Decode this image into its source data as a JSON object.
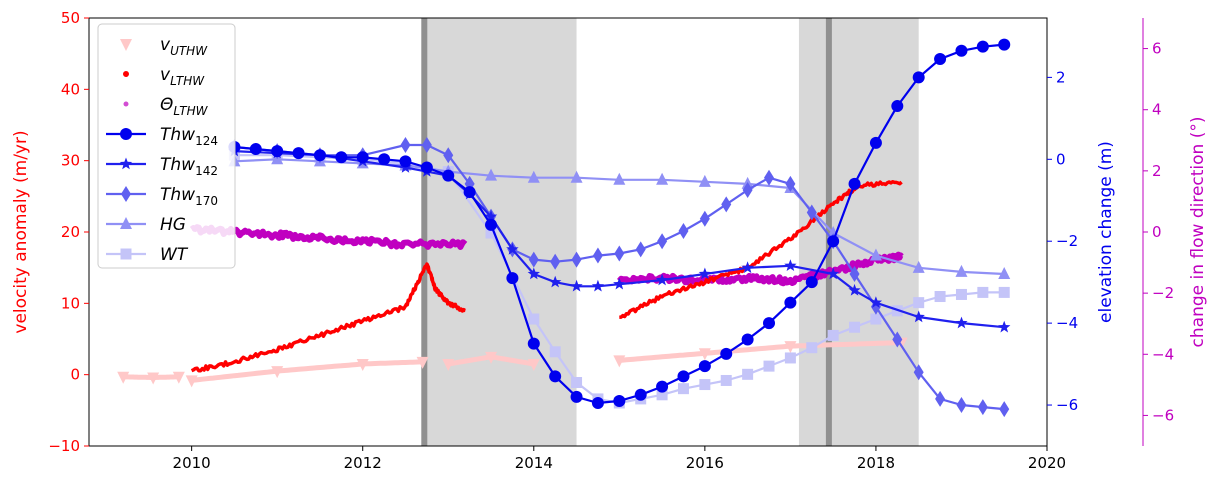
{
  "chart_data": {
    "type": "line",
    "title": "",
    "xlabel": "",
    "ylabel": "velocity anomaly (m/yr)",
    "ylabel_right": "elevation change (m)",
    "ylabel_far_right": "change in flow direction (°)",
    "xlim": [
      2008.8,
      2020
    ],
    "ylim": [
      -10,
      50
    ],
    "ylim_right": [
      -7,
      3.45
    ],
    "ylim_far_right": [
      -7,
      7
    ],
    "x_ticks": [
      2010,
      2012,
      2014,
      2016,
      2018,
      2020
    ],
    "y_ticks": [
      -10,
      0,
      10,
      20,
      30,
      40,
      50
    ],
    "y_ticks_right": [
      -6,
      -4,
      -2,
      0,
      2
    ],
    "y_ticks_far_right": [
      -6,
      -4,
      -2,
      0,
      2,
      4,
      6
    ],
    "grid": false,
    "legend_position": "upper-left",
    "colors": {
      "velocity_axis": "#ff0000",
      "elevation_axis": "#0000ee",
      "direction_axis": "#c000c0",
      "shade": "#d8d8d8",
      "shade_line": "#909090"
    },
    "shaded_periods": [
      [
        2012.75,
        2014.5
      ],
      [
        2017.1,
        2018.5
      ]
    ],
    "event_lines": [
      2012.72,
      2017.45
    ],
    "legend": [
      {
        "base": "v",
        "sub": "UTHW",
        "key": "v_uthw"
      },
      {
        "base": "v",
        "sub": "LTHW",
        "key": "v_lthw"
      },
      {
        "base": "Θ",
        "sub": "LTHW",
        "key": "theta_lthw"
      },
      {
        "base": "Thw",
        "sub": "124",
        "key": "thw124"
      },
      {
        "base": "Thw",
        "sub": "142",
        "key": "thw142"
      },
      {
        "base": "Thw",
        "sub": "170",
        "key": "thw170"
      },
      {
        "base": "HG",
        "sub": "",
        "key": "hg"
      },
      {
        "base": "WT",
        "sub": "",
        "key": "wt"
      }
    ],
    "series": [
      {
        "key": "v_uthw",
        "axis": "velocity",
        "color": "#ffc8c8",
        "marker": "triangle-down",
        "segments": [
          {
            "x": [
              2009.2,
              2009.55,
              2009.85
            ],
            "y": [
              -0.3,
              -0.4,
              -0.3
            ]
          },
          {
            "x": [
              2010.0,
              2011.0,
              2012.0,
              2012.7
            ],
            "y": [
              -0.8,
              0.5,
              1.5,
              1.8
            ]
          },
          {
            "x": [
              2013.0,
              2013.5,
              2014.0
            ],
            "y": [
              1.5,
              2.5,
              1.5
            ]
          },
          {
            "x": [
              2015.0,
              2016.0,
              2017.0,
              2018.3
            ],
            "y": [
              2.0,
              3.0,
              4.0,
              4.5
            ]
          }
        ]
      },
      {
        "key": "v_lthw",
        "axis": "velocity",
        "color": "#ff0000",
        "marker": "dot",
        "segments": [
          {
            "x": [
              2010.0,
              2010.5,
              2011.0,
              2011.5,
              2012.0,
              2012.5,
              2012.75,
              2012.85,
              2013.0,
              2013.2
            ],
            "y": [
              0.5,
              1.8,
              3.5,
              5.5,
              7.5,
              9.5,
              15.5,
              12.0,
              10.0,
              9.0
            ]
          },
          {
            "x": [
              2015.0,
              2015.5,
              2016.0,
              2016.5,
              2017.0,
              2017.5,
              2017.8,
              2018.3
            ],
            "y": [
              8.0,
              11.0,
              13.0,
              15.0,
              19.0,
              24.0,
              26.5,
              27.0
            ]
          }
        ]
      },
      {
        "key": "theta_lthw",
        "axis": "direction",
        "color": "#c000c0",
        "marker": "dot-small",
        "segments": [
          {
            "x": [
              2010.0,
              2010.5,
              2011.0,
              2011.5,
              2012.0,
              2012.5,
              2013.2
            ],
            "y": [
              0.1,
              0.0,
              -0.1,
              -0.2,
              -0.3,
              -0.4,
              -0.4
            ]
          },
          {
            "x": [
              2015.0,
              2015.5,
              2016.0,
              2016.5,
              2017.0,
              2017.5,
              2018.0,
              2018.3
            ],
            "y": [
              -1.6,
              -1.5,
              -1.6,
              -1.5,
              -1.6,
              -1.3,
              -0.9,
              -0.8
            ]
          }
        ]
      },
      {
        "key": "thw124",
        "axis": "elevation",
        "color": "#0000ee",
        "marker": "circle",
        "x": [
          2010.5,
          2010.75,
          2011.0,
          2011.25,
          2011.5,
          2011.75,
          2012.0,
          2012.25,
          2012.5,
          2012.75,
          2013.0,
          2013.25,
          2013.5,
          2013.75,
          2014.0,
          2014.25,
          2014.5,
          2014.75,
          2015.0,
          2015.25,
          2015.5,
          2015.75,
          2016.0,
          2016.25,
          2016.5,
          2016.75,
          2017.0,
          2017.25,
          2017.5,
          2017.75,
          2018.0,
          2018.25,
          2018.5,
          2018.75,
          2019.0,
          2019.25,
          2019.5
        ],
        "y": [
          0.3,
          0.25,
          0.2,
          0.15,
          0.1,
          0.05,
          0.05,
          0.0,
          -0.05,
          -0.2,
          -0.4,
          -0.8,
          -1.6,
          -2.9,
          -4.5,
          -5.3,
          -5.8,
          -5.95,
          -5.9,
          -5.75,
          -5.55,
          -5.3,
          -5.05,
          -4.75,
          -4.4,
          -4.0,
          -3.5,
          -3.0,
          -2.0,
          -0.6,
          0.4,
          1.3,
          2.0,
          2.45,
          2.65,
          2.75,
          2.8
        ]
      },
      {
        "key": "thw142",
        "axis": "elevation",
        "color": "#2020ee",
        "marker": "star",
        "x": [
          2010.5,
          2011.0,
          2011.5,
          2012.0,
          2012.5,
          2012.75,
          2013.0,
          2013.25,
          2013.5,
          2013.75,
          2014.0,
          2014.25,
          2014.5,
          2014.75,
          2015.0,
          2015.5,
          2016.0,
          2016.5,
          2017.0,
          2017.5,
          2017.75,
          2018.0,
          2018.5,
          2019.0,
          2019.5
        ],
        "y": [
          0.2,
          0.15,
          0.1,
          -0.05,
          -0.2,
          -0.3,
          -0.4,
          -0.85,
          -1.4,
          -2.2,
          -2.8,
          -3.0,
          -3.1,
          -3.1,
          -3.05,
          -2.95,
          -2.8,
          -2.65,
          -2.6,
          -2.8,
          -3.2,
          -3.5,
          -3.85,
          -4.0,
          -4.1
        ]
      },
      {
        "key": "thw170",
        "axis": "elevation",
        "color": "#6060f0",
        "marker": "diamond",
        "x": [
          2010.5,
          2011.0,
          2011.5,
          2012.0,
          2012.5,
          2012.75,
          2013.0,
          2013.25,
          2013.5,
          2013.75,
          2014.0,
          2014.25,
          2014.5,
          2014.75,
          2015.0,
          2015.25,
          2015.5,
          2015.75,
          2016.0,
          2016.25,
          2016.5,
          2016.75,
          2017.0,
          2017.25,
          2017.5,
          2017.75,
          2018.0,
          2018.25,
          2018.5,
          2018.75,
          2019.0,
          2019.25,
          2019.5
        ],
        "y": [
          0.3,
          0.2,
          0.1,
          0.1,
          0.35,
          0.35,
          0.1,
          -0.6,
          -1.4,
          -2.2,
          -2.45,
          -2.5,
          -2.45,
          -2.35,
          -2.3,
          -2.2,
          -2.0,
          -1.75,
          -1.45,
          -1.1,
          -0.75,
          -0.45,
          -0.6,
          -1.3,
          -2.0,
          -2.8,
          -3.6,
          -4.4,
          -5.2,
          -5.85,
          -6.0,
          -6.05,
          -6.1
        ]
      },
      {
        "key": "hg",
        "axis": "elevation",
        "color": "#9090f5",
        "marker": "triangle-up",
        "x": [
          2010.5,
          2011.0,
          2011.5,
          2012.0,
          2012.5,
          2013.0,
          2013.5,
          2014.0,
          2014.5,
          2015.0,
          2015.5,
          2016.0,
          2016.5,
          2017.0,
          2017.5,
          2018.0,
          2018.5,
          2019.0,
          2019.5
        ],
        "y": [
          -0.05,
          0.0,
          -0.05,
          -0.1,
          -0.15,
          -0.3,
          -0.4,
          -0.45,
          -0.45,
          -0.5,
          -0.5,
          -0.55,
          -0.6,
          -0.7,
          -1.8,
          -2.35,
          -2.65,
          -2.75,
          -2.8
        ]
      },
      {
        "key": "wt",
        "axis": "elevation",
        "color": "#c4c4f8",
        "marker": "square",
        "x": [
          2010.5,
          2011.0,
          2011.5,
          2012.0,
          2012.5,
          2013.0,
          2013.5,
          2014.0,
          2014.25,
          2014.5,
          2014.75,
          2015.0,
          2015.25,
          2015.5,
          2015.75,
          2016.0,
          2016.25,
          2016.5,
          2016.75,
          2017.0,
          2017.25,
          2017.5,
          2017.75,
          2018.0,
          2018.25,
          2018.5,
          2018.75,
          2019.0,
          2019.25,
          2019.5
        ],
        "y": [
          0.1,
          0.1,
          0.05,
          0.0,
          -0.1,
          -0.3,
          -1.8,
          -3.9,
          -4.7,
          -5.45,
          -5.85,
          -5.95,
          -5.85,
          -5.75,
          -5.6,
          -5.5,
          -5.4,
          -5.25,
          -5.05,
          -4.85,
          -4.6,
          -4.3,
          -4.1,
          -3.9,
          -3.7,
          -3.5,
          -3.35,
          -3.3,
          -3.25,
          -3.25
        ]
      }
    ]
  }
}
